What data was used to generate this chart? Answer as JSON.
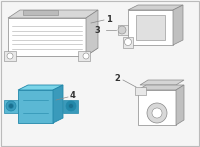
{
  "bg_color": "#f5f5f5",
  "border_color": "#cccccc",
  "line_color": "#888888",
  "outline_color": "#aaaaaa",
  "fill_light": "#e8e8e8",
  "fill_white": "#ffffff",
  "highlight_color": "#5bb8d4",
  "label1": "1",
  "label2": "2",
  "label3": "3",
  "label4": "4",
  "font_size": 6
}
